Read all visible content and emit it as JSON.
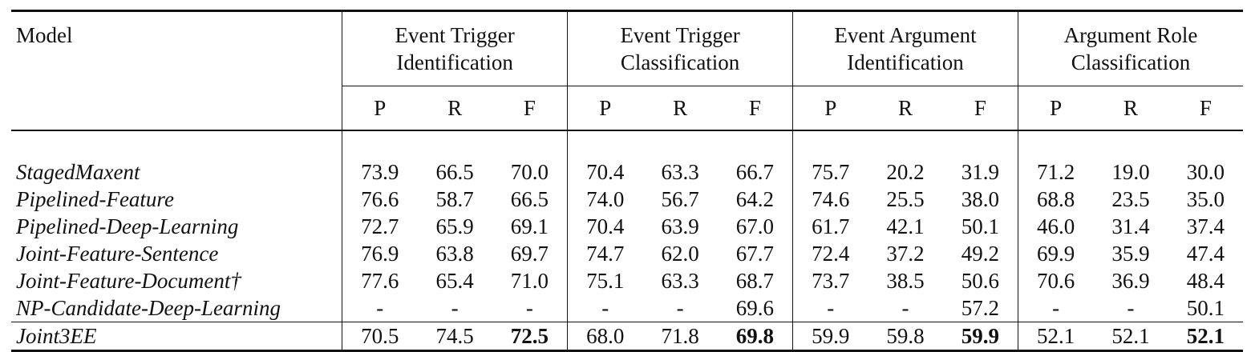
{
  "table": {
    "model_header": "Model",
    "groups": [
      {
        "line1": "Event Trigger",
        "line2": "Identification"
      },
      {
        "line1": "Event Trigger",
        "line2": "Classification"
      },
      {
        "line1": "Event Argument",
        "line2": "Identification"
      },
      {
        "line1": "Argument Role",
        "line2": "Classification"
      }
    ],
    "metrics": [
      "P",
      "R",
      "F"
    ],
    "rows": [
      {
        "model": "StagedMaxent",
        "values": [
          "73.9",
          "66.5",
          "70.0",
          "70.4",
          "63.3",
          "66.7",
          "75.7",
          "20.2",
          "31.9",
          "71.2",
          "19.0",
          "30.0"
        ]
      },
      {
        "model": "Pipelined-Feature",
        "values": [
          "76.6",
          "58.7",
          "66.5",
          "74.0",
          "56.7",
          "64.2",
          "74.6",
          "25.5",
          "38.0",
          "68.8",
          "23.5",
          "35.0"
        ]
      },
      {
        "model": "Pipelined-Deep-Learning",
        "values": [
          "72.7",
          "65.9",
          "69.1",
          "70.4",
          "63.9",
          "67.0",
          "61.7",
          "42.1",
          "50.1",
          "46.0",
          "31.4",
          "37.4"
        ]
      },
      {
        "model": "Joint-Feature-Sentence",
        "values": [
          "76.9",
          "63.8",
          "69.7",
          "74.7",
          "62.0",
          "67.7",
          "72.4",
          "37.2",
          "49.2",
          "69.9",
          "35.9",
          "47.4"
        ]
      },
      {
        "model": "Joint-Feature-Document†",
        "values": [
          "77.6",
          "65.4",
          "71.0",
          "75.1",
          "63.3",
          "68.7",
          "73.7",
          "38.5",
          "50.6",
          "70.6",
          "36.9",
          "48.4"
        ]
      },
      {
        "model": "NP-Candidate-Deep-Learning",
        "values": [
          "-",
          "-",
          "-",
          "-",
          "-",
          "69.6",
          "-",
          "-",
          "57.2",
          "-",
          "-",
          "50.1"
        ]
      }
    ],
    "final_row": {
      "model": "Joint3EE",
      "values": [
        "70.5",
        "74.5",
        "72.5",
        "68.0",
        "71.8",
        "69.8",
        "59.9",
        "59.8",
        "59.9",
        "52.1",
        "52.1",
        "52.1"
      ],
      "bold_indices": [
        2,
        5,
        8,
        11
      ]
    }
  }
}
